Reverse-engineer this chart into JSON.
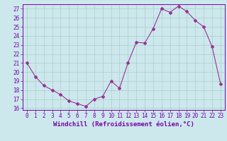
{
  "hours": [
    0,
    1,
    2,
    3,
    4,
    5,
    6,
    7,
    8,
    9,
    10,
    11,
    12,
    13,
    14,
    15,
    16,
    17,
    18,
    19,
    20,
    21,
    22,
    23
  ],
  "values": [
    21.0,
    19.5,
    18.5,
    18.0,
    17.5,
    16.8,
    16.5,
    16.2,
    17.0,
    17.3,
    19.0,
    18.2,
    21.0,
    23.3,
    23.2,
    24.8,
    27.0,
    26.6,
    27.3,
    26.7,
    25.7,
    25.0,
    22.8,
    18.7
  ],
  "line_color": "#993399",
  "marker": "D",
  "marker_size": 2,
  "bg_color": "#cce8ec",
  "grid_color": "#aacccc",
  "xlabel": "Windchill (Refroidissement éolien,°C)",
  "ylim_min": 15.8,
  "ylim_max": 27.5,
  "xlim_min": -0.5,
  "xlim_max": 23.5,
  "yticks": [
    16,
    17,
    18,
    19,
    20,
    21,
    22,
    23,
    24,
    25,
    26,
    27
  ],
  "tick_color": "#7700aa",
  "tick_fontsize": 5.5,
  "xlabel_fontsize": 6.5,
  "label_color": "#7700aa",
  "spine_color": "#7700aa",
  "line_width": 0.8
}
